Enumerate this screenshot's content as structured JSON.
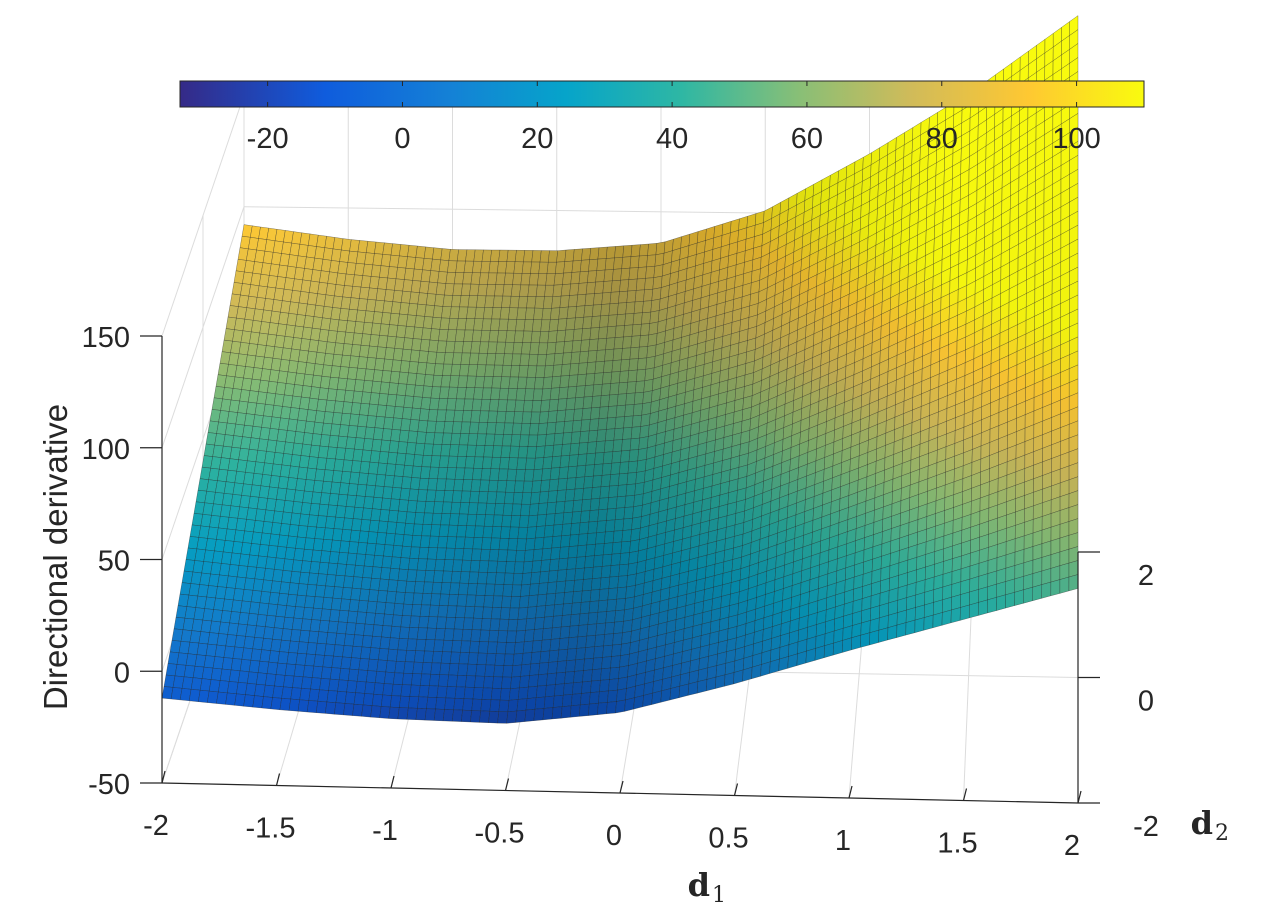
{
  "chart_data": {
    "type": "surface",
    "title": "",
    "xlabel": "d1",
    "xlabel_base": "d",
    "xlabel_sub": "1",
    "ylabel": "d2",
    "ylabel_base": "d",
    "ylabel_sub": "2",
    "zlabel": "Directional derivative",
    "xlim": [
      -2,
      2
    ],
    "ylim": [
      -2,
      2
    ],
    "zlim": [
      -50,
      150
    ],
    "x_ticks": [
      "-2",
      "-1.5",
      "-1",
      "-0.5",
      "0",
      "0.5",
      "1",
      "1.5",
      "2"
    ],
    "y_ticks": [
      "-2",
      "0",
      "2"
    ],
    "z_ticks": [
      "-50",
      "0",
      "50",
      "100",
      "150"
    ],
    "grid": true,
    "colormap": "parula",
    "colorbar": {
      "location": "top",
      "range": [
        -33,
        110
      ],
      "ticks": [
        "-20",
        "0",
        "20",
        "40",
        "60",
        "80",
        "100"
      ],
      "tick_values": [
        -20,
        0,
        20,
        40,
        60,
        80,
        100
      ]
    },
    "colormap_stops": [
      "#352a87",
      "#0f5cdd",
      "#1481d6",
      "#06a4ca",
      "#2eb7a4",
      "#87bf77",
      "#d1bb59",
      "#fec832",
      "#f9fb0e"
    ],
    "surface_profile": {
      "d1": [
        -2,
        -1.5,
        -1,
        -0.5,
        0,
        0.5,
        1,
        1.5,
        2
      ],
      "z_at_d2_min": [
        -12,
        -16,
        -19,
        -20,
        -14,
        0,
        16,
        31,
        46
      ],
      "z_at_d2_max": [
        92,
        86,
        82,
        82,
        86,
        101,
        127,
        156,
        190
      ]
    },
    "surface_grid": {
      "n_d1": 101,
      "n_d2": 41
    }
  }
}
